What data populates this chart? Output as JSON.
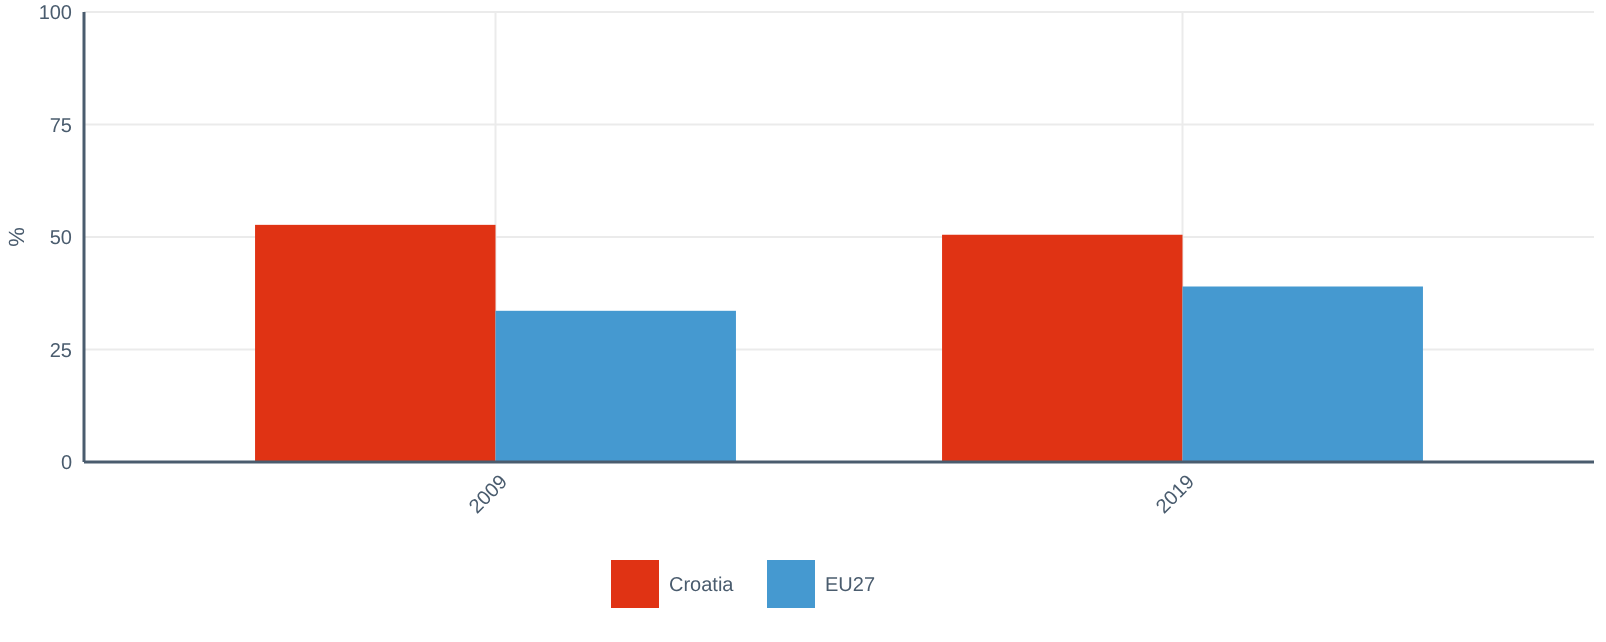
{
  "chart_data": {
    "type": "bar",
    "ylabel": "%",
    "categories": [
      "2009",
      "2019"
    ],
    "series": [
      {
        "name": "Croatia",
        "color": "#e03314",
        "values": [
          52.7,
          50.5
        ]
      },
      {
        "name": "EU27",
        "color": "#4599d0",
        "values": [
          33.6,
          39.0
        ]
      }
    ],
    "ylim": [
      0,
      100
    ],
    "yticks": [
      0,
      25,
      50,
      75,
      100
    ],
    "grid": true,
    "legend": "bottom"
  }
}
